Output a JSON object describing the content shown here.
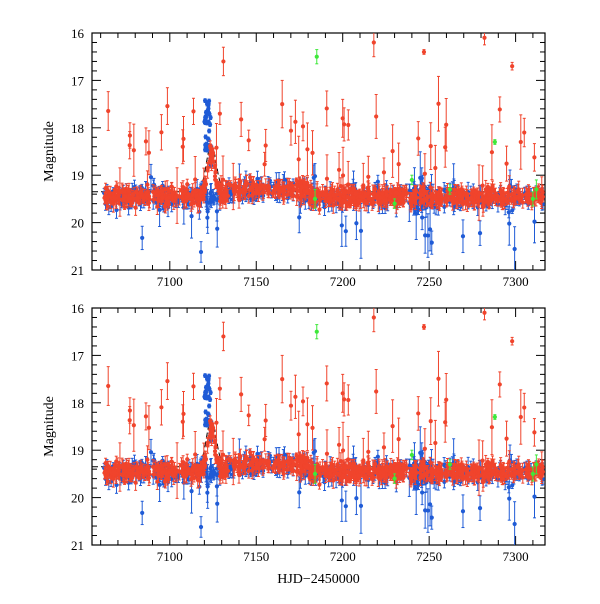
{
  "chart_data": [
    {
      "type": "scatter",
      "panel": "top",
      "title": "",
      "xlabel": "",
      "ylabel": "Magnitude",
      "xlim": [
        7055,
        7317
      ],
      "ylim": [
        21,
        16
      ],
      "y_inverted": true,
      "xticks": [
        7100,
        7150,
        7200,
        7250,
        7300
      ],
      "xtick_labels": [
        "7100",
        "7150",
        "7200",
        "7250",
        "7300"
      ],
      "yticks": [
        16,
        17,
        18,
        19,
        20,
        21
      ],
      "ytick_labels": [
        "16",
        "17",
        "18",
        "19",
        "20",
        "21"
      ],
      "baseline_mag": 19.35,
      "series": [
        {
          "name": "blue",
          "color": "#1f5bd6"
        },
        {
          "name": "red",
          "color": "#f0442c"
        },
        {
          "name": "green",
          "color": "#3ee83a"
        }
      ]
    },
    {
      "type": "scatter",
      "panel": "bottom",
      "title": "",
      "xlabel": "HJD−2450000",
      "ylabel": "Magnitude",
      "xlim": [
        7055,
        7317
      ],
      "ylim": [
        21,
        16
      ],
      "y_inverted": true,
      "xticks": [
        7100,
        7150,
        7200,
        7250,
        7300
      ],
      "xtick_labels": [
        "7100",
        "7150",
        "7200",
        "7250",
        "7300"
      ],
      "yticks": [
        16,
        17,
        18,
        19,
        20,
        21
      ],
      "ytick_labels": [
        "16",
        "17",
        "18",
        "19",
        "20",
        "21"
      ],
      "baseline_mag": 19.35,
      "series": [
        {
          "name": "blue",
          "color": "#1f5bd6"
        },
        {
          "name": "red",
          "color": "#f0442c"
        },
        {
          "name": "green",
          "color": "#3ee83a"
        }
      ]
    }
  ]
}
